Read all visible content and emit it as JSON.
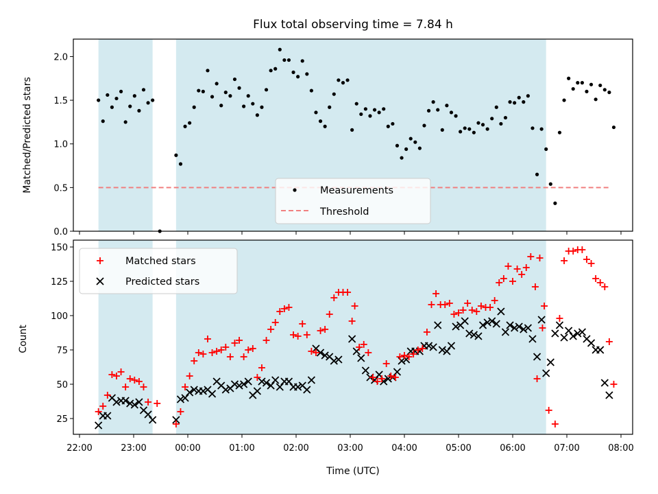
{
  "chart_data": [
    {
      "type": "scatter",
      "title": "Flux total observing time = 7.84 h",
      "xlabel": "",
      "ylabel": "Matched/Predicted stars",
      "ylim": [
        0,
        2.2
      ],
      "yticks": [
        "0.0",
        "0.5",
        "1.0",
        "1.5",
        "2.0"
      ],
      "xlim": [
        "22:00",
        "08:00"
      ],
      "shaded_intervals": [
        [
          "22:21",
          "23:21"
        ],
        [
          "23:47",
          "06:37"
        ]
      ],
      "shade_color": "#d4eaf0",
      "legend": {
        "placement": "lower center",
        "entries": [
          "Measurements",
          "Threshold"
        ]
      },
      "series": [
        {
          "name": "Measurements",
          "color": "#000000",
          "marker": "dot",
          "points": [
            [
              "22:21",
              1.5
            ],
            [
              "22:26",
              1.26
            ],
            [
              "22:31",
              1.56
            ],
            [
              "22:36",
              1.42
            ],
            [
              "22:41",
              1.52
            ],
            [
              "22:46",
              1.6
            ],
            [
              "22:51",
              1.25
            ],
            [
              "22:56",
              1.43
            ],
            [
              "23:01",
              1.55
            ],
            [
              "23:06",
              1.38
            ],
            [
              "23:11",
              1.62
            ],
            [
              "23:16",
              1.47
            ],
            [
              "23:21",
              1.5
            ],
            [
              "23:29",
              0.0
            ],
            [
              "23:47",
              0.87
            ],
            [
              "23:52",
              0.77
            ],
            [
              "23:57",
              1.2
            ],
            [
              "00:02",
              1.24
            ],
            [
              "00:07",
              1.42
            ],
            [
              "00:12",
              1.61
            ],
            [
              "00:17",
              1.6
            ],
            [
              "00:22",
              1.84
            ],
            [
              "00:27",
              1.54
            ],
            [
              "00:32",
              1.69
            ],
            [
              "00:37",
              1.44
            ],
            [
              "00:42",
              1.59
            ],
            [
              "00:47",
              1.55
            ],
            [
              "00:52",
              1.74
            ],
            [
              "00:57",
              1.64
            ],
            [
              "01:02",
              1.43
            ],
            [
              "01:07",
              1.55
            ],
            [
              "01:12",
              1.46
            ],
            [
              "01:17",
              1.33
            ],
            [
              "01:22",
              1.42
            ],
            [
              "01:27",
              1.62
            ],
            [
              "01:32",
              1.84
            ],
            [
              "01:37",
              1.86
            ],
            [
              "01:42",
              2.08
            ],
            [
              "01:47",
              1.96
            ],
            [
              "01:52",
              1.96
            ],
            [
              "01:57",
              1.82
            ],
            [
              "02:02",
              1.77
            ],
            [
              "02:07",
              1.95
            ],
            [
              "02:12",
              1.8
            ],
            [
              "02:17",
              1.61
            ],
            [
              "02:22",
              1.36
            ],
            [
              "02:27",
              1.26
            ],
            [
              "02:32",
              1.2
            ],
            [
              "02:37",
              1.42
            ],
            [
              "02:42",
              1.57
            ],
            [
              "02:47",
              1.73
            ],
            [
              "02:52",
              1.7
            ],
            [
              "02:57",
              1.73
            ],
            [
              "03:02",
              1.16
            ],
            [
              "03:07",
              1.46
            ],
            [
              "03:12",
              1.34
            ],
            [
              "03:17",
              1.4
            ],
            [
              "03:22",
              1.32
            ],
            [
              "03:27",
              1.39
            ],
            [
              "03:32",
              1.36
            ],
            [
              "03:37",
              1.4
            ],
            [
              "03:42",
              1.2
            ],
            [
              "03:47",
              1.23
            ],
            [
              "03:52",
              0.98
            ],
            [
              "03:57",
              0.84
            ],
            [
              "04:02",
              0.94
            ],
            [
              "04:07",
              1.06
            ],
            [
              "04:12",
              1.02
            ],
            [
              "04:17",
              0.95
            ],
            [
              "04:22",
              1.21
            ],
            [
              "04:27",
              1.38
            ],
            [
              "04:32",
              1.48
            ],
            [
              "04:37",
              1.39
            ],
            [
              "04:42",
              1.16
            ],
            [
              "04:47",
              1.44
            ],
            [
              "04:52",
              1.36
            ],
            [
              "04:57",
              1.32
            ],
            [
              "05:02",
              1.14
            ],
            [
              "05:07",
              1.18
            ],
            [
              "05:12",
              1.17
            ],
            [
              "05:17",
              1.13
            ],
            [
              "05:22",
              1.24
            ],
            [
              "05:27",
              1.22
            ],
            [
              "05:32",
              1.17
            ],
            [
              "05:37",
              1.29
            ],
            [
              "05:42",
              1.42
            ],
            [
              "05:47",
              1.23
            ],
            [
              "05:52",
              1.3
            ],
            [
              "05:57",
              1.48
            ],
            [
              "06:02",
              1.47
            ],
            [
              "06:07",
              1.53
            ],
            [
              "06:12",
              1.48
            ],
            [
              "06:17",
              1.55
            ],
            [
              "06:22",
              1.18
            ],
            [
              "06:27",
              0.65
            ],
            [
              "06:32",
              1.17
            ],
            [
              "06:37",
              0.94
            ],
            [
              "06:42",
              0.54
            ],
            [
              "06:47",
              0.32
            ],
            [
              "06:52",
              1.13
            ],
            [
              "06:57",
              1.5
            ],
            [
              "07:02",
              1.75
            ],
            [
              "07:07",
              1.63
            ],
            [
              "07:12",
              1.7
            ],
            [
              "07:17",
              1.7
            ],
            [
              "07:22",
              1.6
            ],
            [
              "07:27",
              1.68
            ],
            [
              "07:32",
              1.51
            ],
            [
              "07:37",
              1.67
            ],
            [
              "07:42",
              1.62
            ],
            [
              "07:47",
              1.59
            ],
            [
              "07:52",
              1.19
            ]
          ]
        },
        {
          "name": "Threshold",
          "color": "#f08080",
          "style": "dashed",
          "points": [
            [
              "22:21",
              0.5
            ],
            [
              "07:47",
              0.5
            ]
          ]
        }
      ]
    },
    {
      "type": "scatter",
      "xlabel": "Time (UTC)",
      "ylabel": "Count",
      "ylim": [
        13,
        155
      ],
      "yticks": [
        "25",
        "50",
        "75",
        "100",
        "125",
        "150"
      ],
      "xlim": [
        "22:00",
        "08:00"
      ],
      "xticks": [
        "22:00",
        "23:00",
        "00:00",
        "01:00",
        "02:00",
        "03:00",
        "04:00",
        "05:00",
        "06:00",
        "07:00",
        "08:00"
      ],
      "shaded_intervals": [
        [
          "22:21",
          "23:21"
        ],
        [
          "23:47",
          "06:37"
        ]
      ],
      "shade_color": "#d4eaf0",
      "legend": {
        "placement": "top-left",
        "entries": [
          "Matched stars",
          "Predicted stars"
        ]
      },
      "series": [
        {
          "name": "Matched stars",
          "color": "#ff0000",
          "marker": "plus",
          "values": [
            30,
            34,
            42,
            57,
            56,
            59,
            48,
            54,
            53,
            52,
            48,
            37,
            36,
            21,
            30,
            48,
            56,
            67,
            73,
            72,
            83,
            73,
            74,
            75,
            77,
            70,
            80,
            82,
            70,
            75,
            76,
            55,
            62,
            82,
            90,
            95,
            103,
            105,
            106,
            86,
            85,
            94,
            86,
            74,
            73,
            89,
            90,
            101,
            113,
            117,
            117,
            117,
            96,
            107,
            77,
            79,
            73,
            55,
            52,
            54,
            65,
            56,
            55,
            70,
            71,
            70,
            72,
            75,
            76,
            88,
            108,
            116,
            108,
            108,
            109,
            101,
            102,
            104,
            109,
            104,
            103,
            107,
            106,
            106,
            111,
            124,
            127,
            136,
            125,
            134,
            130,
            135,
            143,
            121,
            142,
            107,
            54,
            91,
            31,
            21,
            98,
            140,
            147,
            147,
            148,
            148,
            141,
            138,
            127,
            124,
            121,
            81,
            50
          ]
        },
        {
          "name": "Predicted stars",
          "color": "#000000",
          "marker": "x",
          "values": [
            20,
            27,
            27,
            40,
            37,
            38,
            38,
            36,
            35,
            37,
            31,
            28,
            24,
            24,
            39,
            40,
            44,
            46,
            45,
            45,
            46,
            43,
            52,
            49,
            46,
            47,
            50,
            49,
            50,
            52,
            42,
            45,
            52,
            51,
            49,
            53,
            48,
            52,
            52,
            48,
            48,
            49,
            46,
            53,
            76,
            73,
            71,
            70,
            67,
            68,
            83,
            74,
            69,
            60,
            55,
            53,
            57,
            52,
            54,
            55,
            59,
            67,
            68,
            74,
            74,
            74,
            78,
            78,
            77,
            93,
            75,
            74,
            78,
            92,
            93,
            96,
            87,
            86,
            85,
            93,
            95,
            96,
            94,
            103,
            88,
            93,
            91,
            92,
            90,
            91,
            83,
            70,
            97,
            58,
            66,
            87,
            93,
            84,
            89,
            85,
            87,
            88,
            83,
            80,
            75,
            75,
            51,
            42
          ]
        }
      ],
      "x_of_matched": [
        "22:21",
        "22:26",
        "22:31",
        "22:36",
        "22:41",
        "22:46",
        "22:51",
        "22:56",
        "23:01",
        "23:06",
        "23:11",
        "23:16",
        "23:26",
        "23:47",
        "23:52",
        "23:57",
        "00:02",
        "00:07",
        "00:12",
        "00:17",
        "00:22",
        "00:27",
        "00:32",
        "00:37",
        "00:42",
        "00:47",
        "00:52",
        "00:57",
        "01:02",
        "01:07",
        "01:12",
        "01:17",
        "01:22",
        "01:27",
        "01:32",
        "01:37",
        "01:42",
        "01:47",
        "01:52",
        "01:57",
        "02:02",
        "02:07",
        "02:12",
        "02:17",
        "02:22",
        "02:27",
        "02:32",
        "02:37",
        "02:42",
        "02:47",
        "02:52",
        "02:57",
        "03:02",
        "03:05",
        "03:10",
        "03:15",
        "03:20",
        "03:25",
        "03:30",
        "03:35",
        "03:40",
        "03:45",
        "03:50",
        "03:55",
        "04:00",
        "04:05",
        "04:10",
        "04:15",
        "04:20",
        "04:25",
        "04:30",
        "04:35",
        "04:40",
        "04:45",
        "04:50",
        "04:55",
        "05:00",
        "05:05",
        "05:10",
        "05:15",
        "05:20",
        "05:25",
        "05:30",
        "05:35",
        "05:40",
        "05:45",
        "05:50",
        "05:55",
        "06:00",
        "06:05",
        "06:10",
        "06:15",
        "06:20",
        "06:25",
        "06:30",
        "06:35",
        "06:27",
        "06:33",
        "06:40",
        "06:47",
        "06:52",
        "06:57",
        "07:02",
        "07:07",
        "07:12",
        "07:17",
        "07:22",
        "07:27",
        "07:32",
        "07:37",
        "07:42",
        "07:47",
        "07:52"
      ],
      "x_of_predicted": [
        "22:21",
        "22:26",
        "22:31",
        "22:36",
        "22:41",
        "22:46",
        "22:51",
        "22:56",
        "23:01",
        "23:06",
        "23:11",
        "23:16",
        "23:21",
        "23:47",
        "23:52",
        "23:57",
        "00:02",
        "00:07",
        "00:12",
        "00:17",
        "00:22",
        "00:27",
        "00:32",
        "00:37",
        "00:42",
        "00:47",
        "00:52",
        "00:57",
        "01:02",
        "01:07",
        "01:12",
        "01:17",
        "01:22",
        "01:27",
        "01:32",
        "01:37",
        "01:42",
        "01:47",
        "01:52",
        "01:57",
        "02:02",
        "02:07",
        "02:12",
        "02:17",
        "02:22",
        "02:27",
        "02:32",
        "02:37",
        "02:42",
        "02:47",
        "03:02",
        "03:07",
        "03:12",
        "03:17",
        "03:22",
        "03:27",
        "03:32",
        "03:37",
        "03:42",
        "03:47",
        "03:52",
        "03:57",
        "04:02",
        "04:07",
        "04:12",
        "04:17",
        "04:22",
        "04:27",
        "04:32",
        "04:37",
        "04:42",
        "04:47",
        "04:52",
        "04:57",
        "05:02",
        "05:07",
        "05:12",
        "05:17",
        "05:22",
        "05:27",
        "05:32",
        "05:37",
        "05:42",
        "05:47",
        "05:52",
        "05:57",
        "06:02",
        "06:07",
        "06:12",
        "06:17",
        "06:22",
        "06:27",
        "06:32",
        "06:37",
        "06:42",
        "06:47",
        "06:52",
        "06:57",
        "07:02",
        "07:07",
        "07:12",
        "07:17",
        "07:22",
        "07:27",
        "07:32",
        "07:37",
        "07:42",
        "07:47"
      ]
    }
  ]
}
